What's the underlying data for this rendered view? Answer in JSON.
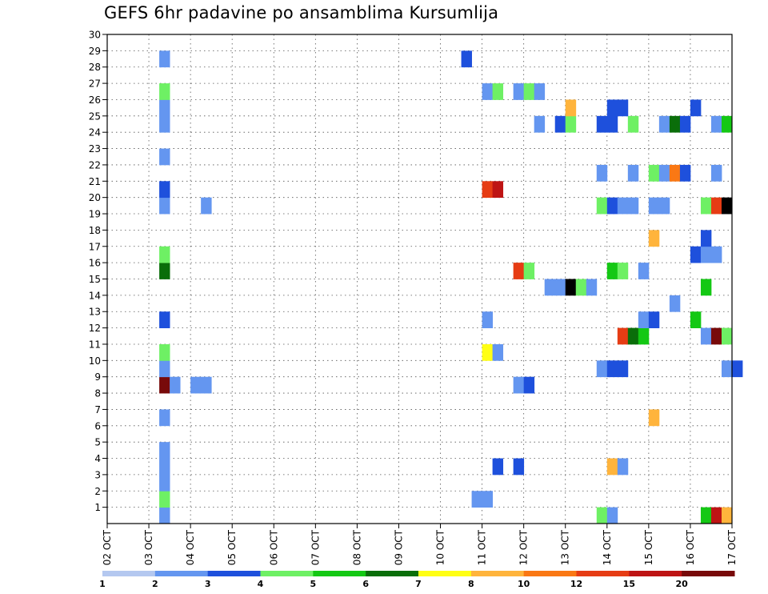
{
  "chart_data": {
    "type": "heatmap",
    "title": "GEFS 6hr padavine po ansamblima Kursumlija",
    "xlabel": "",
    "ylabel": "",
    "x_tick_labels": [
      "02 OCT",
      "03 OCT",
      "04 OCT",
      "05 OCT",
      "06 OCT",
      "07 OCT",
      "08 OCT",
      "09 OCT",
      "10 OCT",
      "11 OCT",
      "12 OCT",
      "13 OCT",
      "14 OCT",
      "15 OCT",
      "16 OCT",
      "17 OCT"
    ],
    "y_tick_labels": [
      "1",
      "2",
      "3",
      "4",
      "5",
      "6",
      "7",
      "8",
      "9",
      "10",
      "11",
      "12",
      "13",
      "14",
      "15",
      "16",
      "17",
      "18",
      "19",
      "20",
      "21",
      "22",
      "23",
      "24",
      "25",
      "26",
      "27",
      "28",
      "29",
      "30"
    ],
    "xlim_days": [
      0,
      15
    ],
    "ylim": [
      0,
      30
    ],
    "grid": true,
    "legend_placement": "bottom",
    "legend": {
      "labels": [
        "1",
        "2",
        "3",
        "4",
        "5",
        "6",
        "7",
        "8",
        "10",
        "12",
        "15",
        "20"
      ],
      "colors": [
        "#b4c8f0",
        "#6496f0",
        "#1e50dc",
        "#6ef064",
        "#14c814",
        "#0a6e0a",
        "#ffff14",
        "#ffb43c",
        "#fa7814",
        "#e63c14",
        "#be1414",
        "#780a0a"
      ]
    },
    "cells": [
      [
        1.25,
        0.5,
        1
      ],
      [
        1.25,
        1.5,
        3
      ],
      [
        1.25,
        2.5,
        1
      ],
      [
        1.25,
        3.5,
        1
      ],
      [
        1.25,
        4.5,
        1
      ],
      [
        1.25,
        6.5,
        1
      ],
      [
        1.25,
        8.5,
        11
      ],
      [
        1.5,
        8.5,
        1
      ],
      [
        2.0,
        8.5,
        1
      ],
      [
        2.25,
        8.5,
        1
      ],
      [
        1.25,
        9.5,
        1
      ],
      [
        1.25,
        10.5,
        3
      ],
      [
        1.25,
        12.5,
        2
      ],
      [
        1.25,
        15.5,
        5
      ],
      [
        1.25,
        16.5,
        3
      ],
      [
        1.25,
        19.5,
        1
      ],
      [
        2.25,
        19.5,
        1
      ],
      [
        1.25,
        20.5,
        2
      ],
      [
        1.25,
        22.5,
        1
      ],
      [
        1.25,
        24.5,
        1
      ],
      [
        1.25,
        25.5,
        1
      ],
      [
        1.25,
        26.5,
        3
      ],
      [
        1.25,
        28.5,
        1
      ],
      [
        8.5,
        28.5,
        2
      ],
      [
        8.75,
        1.5,
        1
      ],
      [
        9.0,
        1.5,
        1
      ],
      [
        9.25,
        3.5,
        2
      ],
      [
        9.75,
        3.5,
        2
      ],
      [
        9.75,
        8.5,
        1
      ],
      [
        10.0,
        8.5,
        2
      ],
      [
        9.0,
        10.5,
        6
      ],
      [
        9.25,
        10.5,
        1
      ],
      [
        9.0,
        12.5,
        1
      ],
      [
        9.75,
        15.5,
        9
      ],
      [
        10.0,
        15.5,
        3
      ],
      [
        9.0,
        20.5,
        9
      ],
      [
        9.25,
        20.5,
        10
      ],
      [
        9.0,
        26.5,
        1
      ],
      [
        9.25,
        26.5,
        3
      ],
      [
        9.75,
        26.5,
        1
      ],
      [
        10.0,
        26.5,
        3
      ],
      [
        10.25,
        26.5,
        1
      ],
      [
        10.25,
        24.5,
        1
      ],
      [
        10.5,
        14.5,
        1
      ],
      [
        10.75,
        14.5,
        1
      ],
      [
        11.0,
        14.5,
        12
      ],
      [
        11.25,
        14.5,
        3
      ],
      [
        11.5,
        14.5,
        1
      ],
      [
        10.75,
        24.5,
        2
      ],
      [
        11.0,
        24.5,
        3
      ],
      [
        11.0,
        25.5,
        7
      ],
      [
        11.75,
        0.5,
        3
      ],
      [
        12.0,
        0.5,
        1
      ],
      [
        12.0,
        3.5,
        7
      ],
      [
        12.25,
        3.5,
        1
      ],
      [
        11.75,
        9.5,
        1
      ],
      [
        12.0,
        9.5,
        2
      ],
      [
        12.25,
        9.5,
        2
      ],
      [
        12.25,
        11.5,
        9
      ],
      [
        12.5,
        11.5,
        5
      ],
      [
        12.75,
        11.5,
        4
      ],
      [
        12.0,
        15.5,
        4
      ],
      [
        12.25,
        15.5,
        3
      ],
      [
        11.75,
        19.5,
        3
      ],
      [
        12.0,
        19.5,
        2
      ],
      [
        12.25,
        19.5,
        1
      ],
      [
        12.5,
        19.5,
        1
      ],
      [
        11.75,
        21.5,
        1
      ],
      [
        12.5,
        21.5,
        1
      ],
      [
        11.75,
        24.5,
        2
      ],
      [
        12.0,
        24.5,
        2
      ],
      [
        12.5,
        24.5,
        3
      ],
      [
        12.0,
        25.5,
        2
      ],
      [
        12.25,
        25.5,
        2
      ],
      [
        12.75,
        12.5,
        1
      ],
      [
        13.0,
        12.5,
        2
      ],
      [
        12.75,
        15.5,
        1
      ],
      [
        13.0,
        6.5,
        7
      ],
      [
        13.0,
        17.5,
        7
      ],
      [
        13.0,
        19.5,
        1
      ],
      [
        13.25,
        19.5,
        1
      ],
      [
        13.0,
        21.5,
        3
      ],
      [
        13.25,
        21.5,
        1
      ],
      [
        13.5,
        21.5,
        8
      ],
      [
        13.75,
        21.5,
        2
      ],
      [
        13.25,
        24.5,
        1
      ],
      [
        13.5,
        24.5,
        5
      ],
      [
        13.75,
        24.5,
        2
      ],
      [
        13.5,
        13.5,
        1
      ],
      [
        14.0,
        12.5,
        4
      ],
      [
        14.0,
        25.5,
        2
      ],
      [
        14.25,
        0.5,
        4
      ],
      [
        14.5,
        0.5,
        10
      ],
      [
        14.75,
        0.5,
        7
      ],
      [
        14.75,
        9.5,
        1
      ],
      [
        15.0,
        9.5,
        2
      ],
      [
        14.25,
        11.5,
        1
      ],
      [
        14.5,
        11.5,
        11
      ],
      [
        14.75,
        11.5,
        3
      ],
      [
        14.25,
        14.5,
        4
      ],
      [
        14.0,
        16.5,
        2
      ],
      [
        14.25,
        16.5,
        1
      ],
      [
        14.5,
        16.5,
        1
      ],
      [
        14.25,
        17.5,
        2
      ],
      [
        14.25,
        19.5,
        3
      ],
      [
        14.5,
        19.5,
        9
      ],
      [
        14.75,
        19.5,
        12
      ],
      [
        14.5,
        21.5,
        1
      ],
      [
        14.5,
        24.5,
        1
      ],
      [
        14.75,
        24.5,
        4
      ]
    ]
  }
}
